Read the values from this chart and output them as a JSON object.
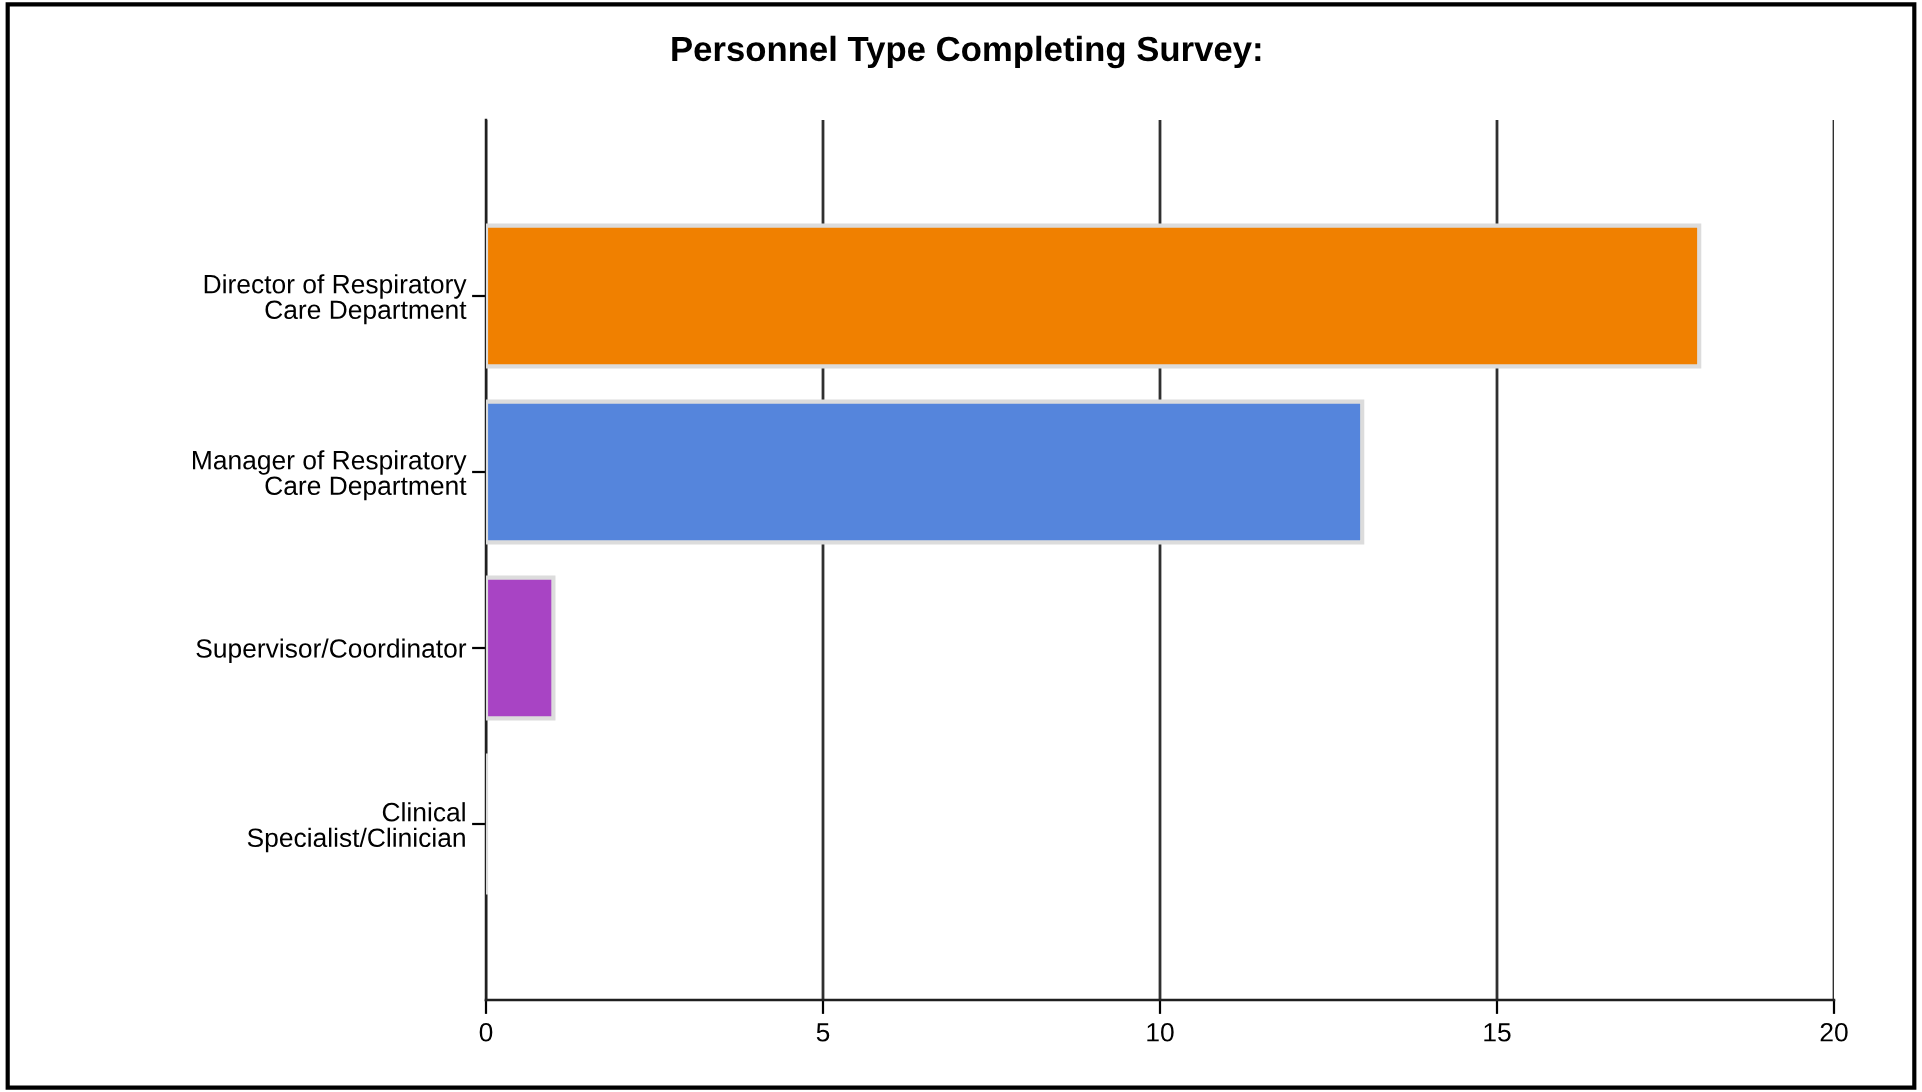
{
  "chart_data": {
    "type": "bar",
    "orientation": "horizontal",
    "title": "Personnel Type Completing Survey:",
    "categories": [
      "Director of Respiratory\nCare Department",
      "Manager of Respiratory\nCare Department",
      "Supervisor/Coordinator",
      "Clinical\nSpecialist/Clinician"
    ],
    "values": [
      18,
      13,
      1,
      0
    ],
    "colors": [
      "#f08000",
      "#5585dc",
      "#a844c4",
      "#dcdcdc"
    ],
    "xlim": [
      0,
      20
    ],
    "xticks": [
      0,
      5,
      10,
      15,
      20
    ],
    "grid": "x",
    "legend": false
  }
}
